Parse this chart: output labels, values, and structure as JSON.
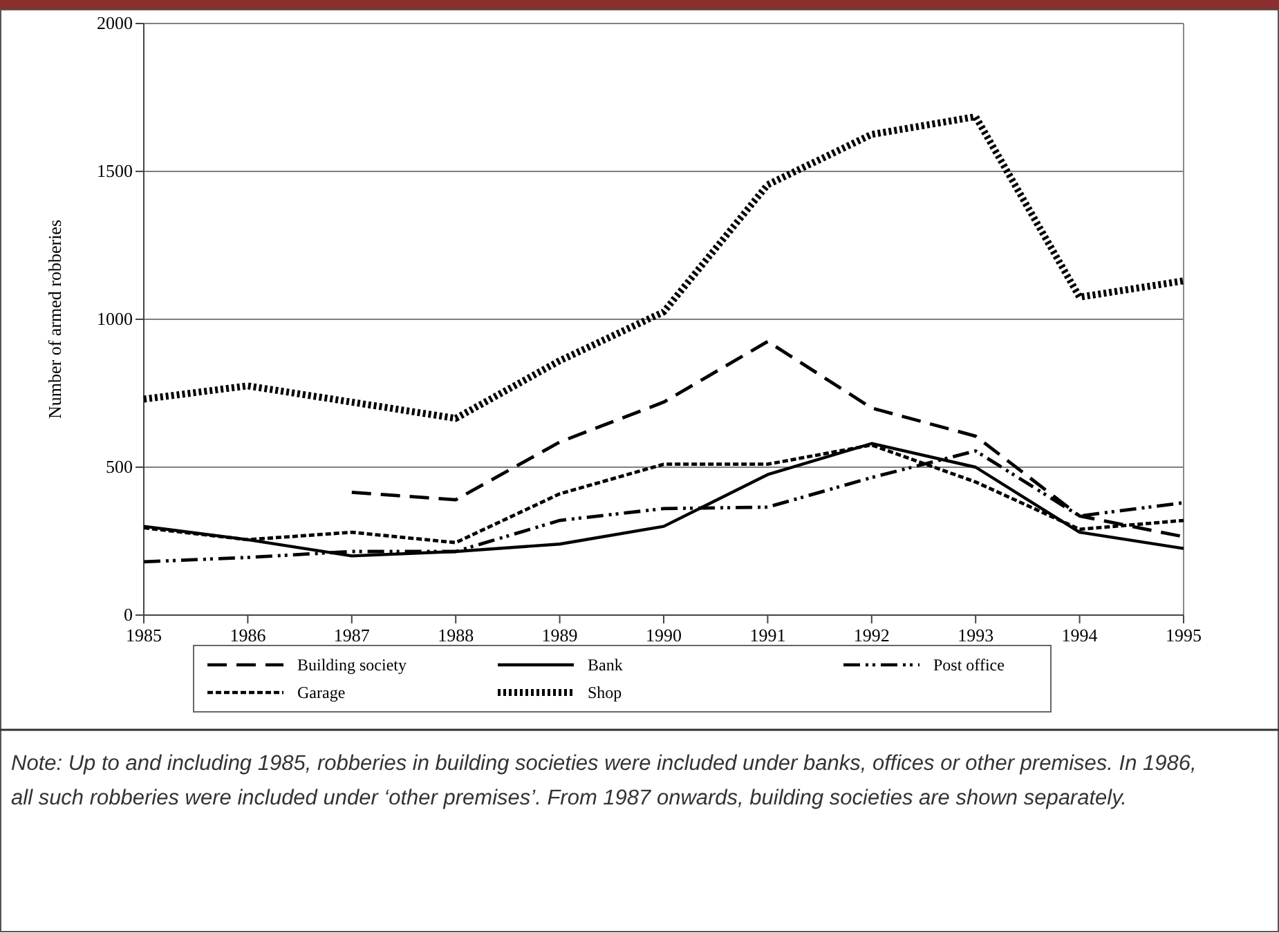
{
  "chart_data": {
    "type": "line",
    "ylabel": "Number of armed robberies",
    "x": [
      1985,
      1986,
      1987,
      1988,
      1989,
      1990,
      1991,
      1992,
      1993,
      1994,
      1995
    ],
    "xlim": [
      1985,
      1995
    ],
    "xticks": [
      1985,
      1986,
      1987,
      1988,
      1989,
      1990,
      1991,
      1992,
      1993,
      1994,
      1995
    ],
    "ylim": [
      0,
      2000
    ],
    "yticks": [
      0,
      500,
      1000,
      1500,
      2000
    ],
    "grid": "y",
    "legend": "bottom",
    "series": [
      {
        "name": "Building society",
        "color": "#000000",
        "line_style": "dashed",
        "values": [
          null,
          null,
          415,
          390,
          585,
          720,
          925,
          700,
          605,
          335,
          265
        ]
      },
      {
        "name": "Bank",
        "color": "#000000",
        "line_style": "solid",
        "values": [
          300,
          255,
          200,
          215,
          240,
          300,
          475,
          580,
          500,
          280,
          225
        ]
      },
      {
        "name": "Post office",
        "color": "#000000",
        "line_style": "dashdot",
        "values": [
          180,
          195,
          215,
          215,
          320,
          360,
          365,
          465,
          555,
          335,
          380
        ]
      },
      {
        "name": "Garage",
        "color": "#000000",
        "line_style": "dotted",
        "values": [
          295,
          255,
          280,
          245,
          410,
          510,
          510,
          575,
          450,
          290,
          320
        ]
      },
      {
        "name": "Shop",
        "color": "#000000",
        "line_style": "dotted",
        "values": [
          730,
          775,
          720,
          665,
          860,
          1025,
          1455,
          1625,
          1685,
          1075,
          1130
        ]
      }
    ],
    "annotations": [
      "Note: Up to and including 1985, robberies in building societies were included under banks, offices or other premises.  In 1986, all such robberies were included under ‘other premises’.  From 1987 onwards, building societies are shown separately."
    ]
  }
}
